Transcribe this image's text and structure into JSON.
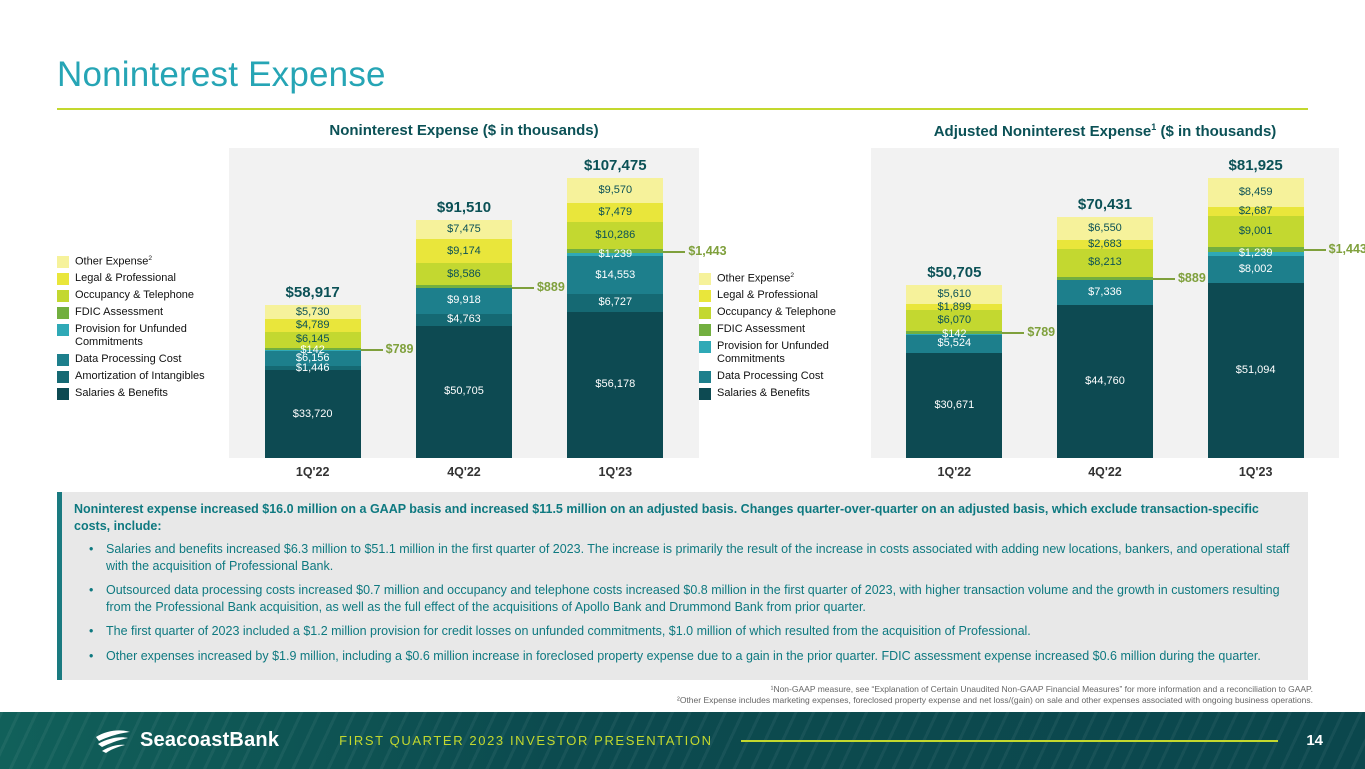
{
  "slide": {
    "title": "Noninterest Expense",
    "page_number": "14",
    "footer_text": "FIRST QUARTER 2023 INVESTOR PRESENTATION",
    "logo_text": "SeacoastBank"
  },
  "colors": {
    "title_teal": "#26A5B5",
    "dark_teal": "#0B5156",
    "accent_green": "#C3D82E",
    "callout_green": "#7FA03C",
    "plot_background": "#F2F2F2",
    "panel_background": "#E8E8E8",
    "body_text": "#0E7980",
    "footer_background": "#0C4B4F"
  },
  "chart_data": [
    {
      "type": "bar",
      "stacked": true,
      "title": "Noninterest Expense",
      "title_sup": "",
      "title_suffix": " ($ in thousands)",
      "legend_position": "left",
      "grid": false,
      "categories": [
        "1Q'22",
        "4Q'22",
        "1Q'23"
      ],
      "totals": [
        "$58,917",
        "$91,510",
        "$107,475"
      ],
      "series": [
        {
          "name": "Salaries & Benefits",
          "color": "#0D4A52",
          "text_color": "#FFFFFF",
          "values": [
            33720,
            50705,
            56178
          ],
          "labels": [
            "$33,720",
            "$50,705",
            "$56,178"
          ]
        },
        {
          "name": "Amortization of Intangibles",
          "color": "#156973",
          "text_color": "#FFFFFF",
          "values": [
            1446,
            4763,
            6727
          ],
          "labels": [
            "$1,446",
            "$4,763",
            "$6,727"
          ]
        },
        {
          "name": "Data Processing Cost",
          "color": "#1D7F8C",
          "text_color": "#FFFFFF",
          "values": [
            6156,
            9918,
            14553
          ],
          "labels": [
            "$6,156",
            "$9,918",
            "$14,553"
          ]
        },
        {
          "name": "Provision for Unfunded Commitments",
          "color": "#2FA9B6",
          "text_color": "#FFFFFF",
          "values": [
            142,
            0,
            1239
          ],
          "labels": [
            "$142",
            "",
            "$1,239"
          ]
        },
        {
          "name": "FDIC Assessment",
          "color": "#72AF3F",
          "text_color": "#0B5156",
          "callout": true,
          "values": [
            789,
            889,
            1443
          ],
          "labels": [
            "$789",
            "$889",
            "$1,443"
          ]
        },
        {
          "name": "Occupancy & Telephone",
          "color": "#C3D830",
          "text_color": "#0B5156",
          "values": [
            6145,
            8586,
            10286
          ],
          "labels": [
            "$6,145",
            "$8,586",
            "$10,286"
          ]
        },
        {
          "name": "Legal & Professional",
          "color": "#E9E63B",
          "text_color": "#0B5156",
          "values": [
            4789,
            9174,
            7479
          ],
          "labels": [
            "$4,789",
            "$9,174",
            "$7,479"
          ]
        },
        {
          "name": "Other Expense",
          "sup": "2",
          "color": "#F6F29B",
          "text_color": "#0B5156",
          "values": [
            5730,
            7475,
            9570
          ],
          "labels": [
            "$5,730",
            "$7,475",
            "$9,570"
          ]
        }
      ]
    },
    {
      "type": "bar",
      "stacked": true,
      "title": "Adjusted Noninterest Expense",
      "title_sup": "1",
      "title_suffix": " ($ in thousands)",
      "legend_position": "left",
      "grid": false,
      "categories": [
        "1Q'22",
        "4Q'22",
        "1Q'23"
      ],
      "totals": [
        "$50,705",
        "$70,431",
        "$81,925"
      ],
      "series": [
        {
          "name": "Salaries & Benefits",
          "color": "#0D4A52",
          "text_color": "#FFFFFF",
          "values": [
            30671,
            44760,
            51094
          ],
          "labels": [
            "$30,671",
            "$44,760",
            "$51,094"
          ]
        },
        {
          "name": "Data Processing Cost",
          "color": "#1D7F8C",
          "text_color": "#FFFFFF",
          "values": [
            5524,
            7336,
            8002
          ],
          "labels": [
            "$5,524",
            "$7,336",
            "$8,002"
          ]
        },
        {
          "name": "Provision for Unfunded Commitments",
          "color": "#2FA9B6",
          "text_color": "#FFFFFF",
          "values": [
            142,
            0,
            1239
          ],
          "labels": [
            "$142",
            "",
            "$1,239"
          ]
        },
        {
          "name": "FDIC Assessment",
          "color": "#72AF3F",
          "text_color": "#0B5156",
          "callout": true,
          "values": [
            789,
            889,
            1443
          ],
          "labels": [
            "$789",
            "$889",
            "$1,443"
          ]
        },
        {
          "name": "Occupancy & Telephone",
          "color": "#C3D830",
          "text_color": "#0B5156",
          "values": [
            6070,
            8213,
            9001
          ],
          "labels": [
            "$6,070",
            "$8,213",
            "$9,001"
          ]
        },
        {
          "name": "Legal & Professional",
          "color": "#E9E63B",
          "text_color": "#0B5156",
          "values": [
            1899,
            2683,
            2687
          ],
          "labels": [
            "$1,899",
            "$2,683",
            "$2,687"
          ]
        },
        {
          "name": "Other Expense",
          "sup": "2",
          "color": "#F6F29B",
          "text_color": "#0B5156",
          "values": [
            5610,
            6550,
            8459
          ],
          "labels": [
            "$5,610",
            "$6,550",
            "$8,459"
          ]
        }
      ]
    }
  ],
  "commentary": {
    "intro": "Noninterest expense increased $16.0 million on a GAAP basis and increased $11.5 million on an adjusted basis. Changes quarter-over-quarter on an adjusted basis, which exclude transaction-specific costs, include:",
    "bullets": [
      "Salaries and benefits increased $6.3 million to $51.1 million in the first quarter of 2023. The increase is primarily the result of the increase in costs associated with adding new locations, bankers, and operational staff with the acquisition of Professional Bank.",
      "Outsourced data processing costs increased $0.7 million and occupancy and telephone costs increased $0.8 million in the first quarter of 2023, with higher transaction volume and the growth in customers resulting from the Professional Bank acquisition, as well as the full effect of the acquisitions of Apollo Bank and Drummond Bank from prior quarter.",
      "The first quarter of 2023 included a $1.2 million provision for credit losses on unfunded commitments, $1.0 million of which resulted from the acquisition of Professional.",
      "Other expenses increased by $1.9 million, including a $0.6 million increase in foreclosed property expense due to a gain in the prior quarter. FDIC assessment expense increased $0.6 million during the quarter."
    ]
  },
  "footnotes": [
    "¹Non-GAAP measure, see “Explanation of Certain Unaudited Non-GAAP Financial Measures” for more information and a reconciliation to GAAP.",
    "²Other Expense includes marketing expenses, foreclosed property expense and net loss/(gain) on sale and other expenses associated with ongoing business operations."
  ]
}
